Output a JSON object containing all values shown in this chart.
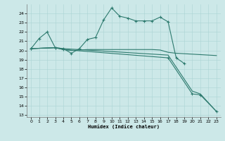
{
  "xlabel": "Humidex (Indice chaleur)",
  "bg_color": "#cce8e8",
  "grid_color": "#aad4d4",
  "line_color": "#2d7a6e",
  "xlim": [
    -0.5,
    23.5
  ],
  "ylim": [
    12.8,
    25.0
  ],
  "yticks": [
    13,
    14,
    15,
    16,
    17,
    18,
    19,
    20,
    21,
    22,
    23,
    24
  ],
  "xticks": [
    0,
    1,
    2,
    3,
    4,
    5,
    6,
    7,
    8,
    9,
    10,
    11,
    12,
    13,
    14,
    15,
    16,
    17,
    18,
    19,
    20,
    21,
    22,
    23
  ],
  "line1_x": [
    0,
    1,
    2,
    3,
    4,
    5,
    6,
    7,
    8,
    9,
    10,
    11,
    12,
    13,
    14,
    15,
    16,
    17,
    18,
    19
  ],
  "line1_y": [
    20.2,
    21.3,
    22.0,
    20.3,
    20.2,
    19.7,
    20.2,
    21.2,
    21.4,
    23.3,
    24.6,
    23.7,
    23.5,
    23.2,
    23.2,
    23.2,
    23.6,
    23.1,
    19.2,
    18.6
  ],
  "line2_x": [
    0,
    3,
    4,
    5,
    6,
    7,
    8,
    9,
    10,
    11,
    12,
    13,
    14,
    15,
    16,
    17,
    18,
    19,
    20,
    21,
    22,
    23
  ],
  "line2_y": [
    20.2,
    20.3,
    20.1,
    20.0,
    20.05,
    20.1,
    20.1,
    20.1,
    20.1,
    20.1,
    20.1,
    20.1,
    20.1,
    20.1,
    20.05,
    19.8,
    19.7,
    19.65,
    19.6,
    19.55,
    19.5,
    19.45
  ],
  "line3_x": [
    0,
    3,
    4,
    17,
    20,
    21,
    23
  ],
  "line3_y": [
    20.2,
    20.3,
    20.1,
    19.2,
    15.3,
    15.2,
    13.4
  ],
  "line4_x": [
    0,
    3,
    4,
    17,
    20,
    21,
    23
  ],
  "line4_y": [
    20.2,
    20.3,
    20.2,
    19.5,
    15.6,
    15.3,
    13.4
  ]
}
